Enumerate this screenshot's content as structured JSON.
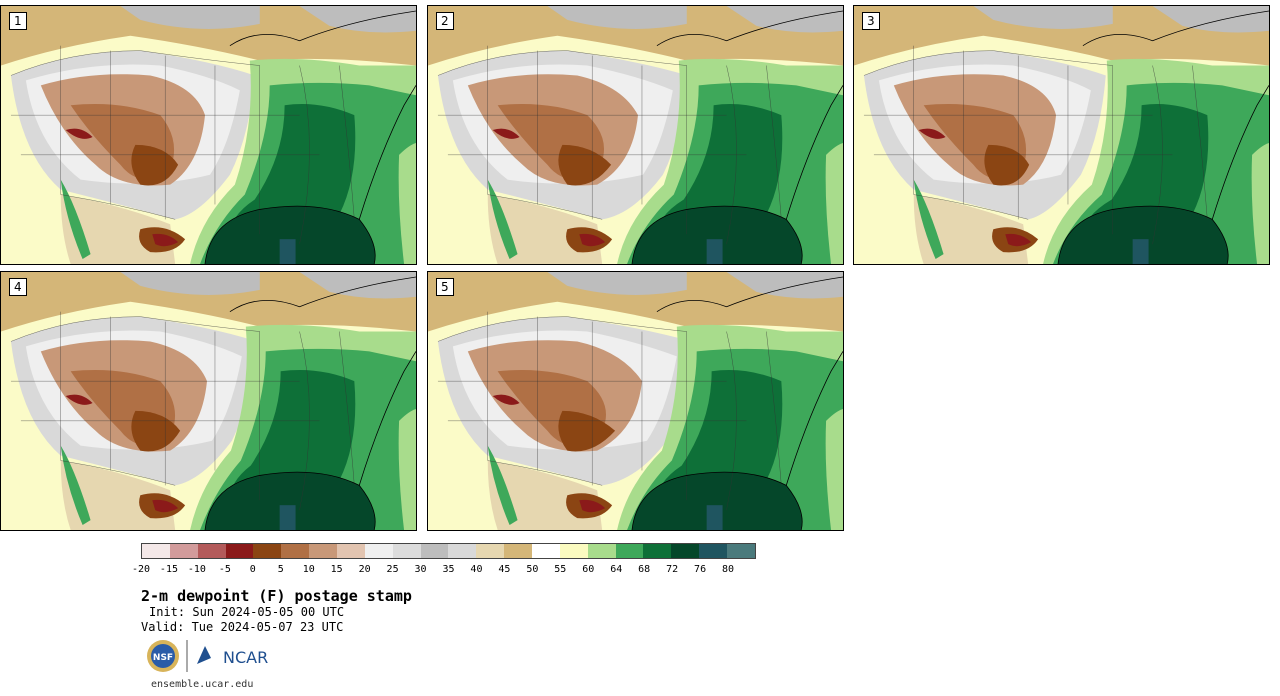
{
  "panels": [
    {
      "label": "1"
    },
    {
      "label": "2"
    },
    {
      "label": "3"
    },
    {
      "label": "4"
    },
    {
      "label": "5"
    }
  ],
  "colorbar": {
    "colors": [
      "#f4e8e8",
      "#d29b9b",
      "#b35a5a",
      "#8b1a1a",
      "#8b4513",
      "#b07045",
      "#c89878",
      "#e2c4b0",
      "#efefef",
      "#dcdcdc",
      "#bdbdbd",
      "#d9d9d9",
      "#e6d7b0",
      "#d4b678",
      "#ffffff",
      "#fbfbc0",
      "#a8dc8c",
      "#3ea85a",
      "#0e7038",
      "#05472a",
      "#1f5560",
      "#4a7a7c"
    ],
    "tick_labels": [
      "-20",
      "-15",
      "-10",
      "-5",
      "0",
      "5",
      "10",
      "15",
      "20",
      "25",
      "30",
      "35",
      "40",
      "45",
      "50",
      "55",
      "60",
      "64",
      "68",
      "72",
      "76",
      "80"
    ]
  },
  "title": "2-m dewpoint (F) postage stamp",
  "init": "Init: Sun 2024-05-05 00 UTC",
  "valid": "Valid: Tue 2024-05-07 23 UTC",
  "logos": {
    "nsf": "NSF",
    "ncar": "NCAR"
  },
  "url": "ensemble.ucar.edu"
}
